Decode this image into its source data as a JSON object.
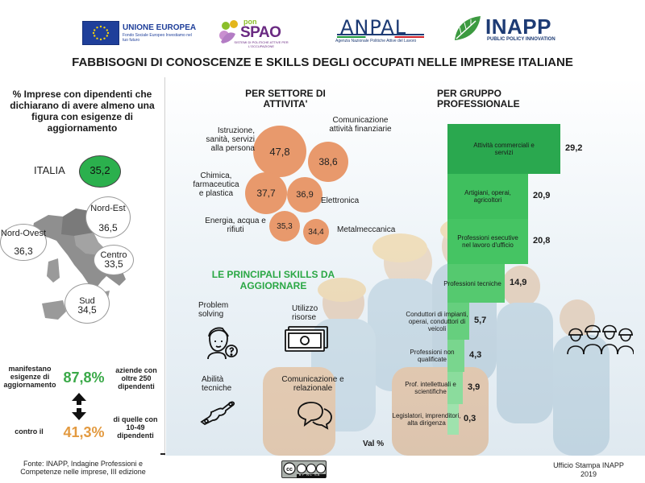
{
  "header": {
    "eu_name": "UNIONE EUROPEA",
    "eu_sub": "Fondo Sociale Europeo Investiamo nel tuo futuro",
    "pon_small": "pon",
    "pon_big": "SPAO",
    "pon_sub": "SISTEMI DI POLITICHE ATTIVE PER L'OCCUPAZIONE",
    "anpal_name": "ANPAL",
    "anpal_sub": "Agenzia Nazionale Politiche Attive del Lavoro",
    "inapp_name": "INAPP",
    "inapp_sub": "PUBLIC POLICY INNOVATION"
  },
  "title": "FABBISOGNI DI CONOSCENZE E SKILLS DEGLI OCCUPATI NELLE IMPRESE ITALIANE",
  "left": {
    "heading": "% Imprese con dipendenti che dichiarano di avere almeno una figura con esigenze di aggiornamento",
    "italia_label": "ITALIA",
    "italia_value": "35,2",
    "regions": [
      {
        "name": "Nord-Est",
        "value": "36,5"
      },
      {
        "name": "Nord-Ovest",
        "value": "36,3"
      },
      {
        "name": "Centro",
        "value": "33,5"
      },
      {
        "name": "Sud",
        "value": "34,5"
      }
    ],
    "stat1_left": "manifestano esigenze di aggiornamento",
    "stat1_value": "87,8%",
    "stat1_right": "aziende con oltre 250 dipendenti",
    "stat2_left": "contro il",
    "stat2_value": "41,3%",
    "stat2_right": "di quelle con 10-49 dipendenti"
  },
  "sector": {
    "title": "PER SETTORE DI ATTIVITA'",
    "bubbles": [
      {
        "label": "Istruzione, sanità, servizi alla persona",
        "value": "47,8"
      },
      {
        "label": "Comunicazione attività finanziarie",
        "value": "38,6"
      },
      {
        "label": "Chimica, farmaceutica e plastica",
        "value": "37,7"
      },
      {
        "label": "Elettronica",
        "value": "36,9"
      },
      {
        "label": "Energia, acqua e rifiuti",
        "value": "35,3"
      },
      {
        "label": "Metalmeccanica",
        "value": "34,4"
      }
    ]
  },
  "skills": {
    "title": "LE PRINCIPALI SKILLS DA AGGIORNARE",
    "items": [
      {
        "label": "Problem solving",
        "icon": "person-question-icon"
      },
      {
        "label": "Utilizzo risorse",
        "icon": "banknote-icon"
      },
      {
        "label": "Abilità tecniche",
        "icon": "wrench-icon"
      },
      {
        "label": "Comunicazione e relazionale",
        "icon": "speech-bubbles-icon"
      }
    ]
  },
  "groups": {
    "title": "PER GRUPPO PROFESSIONALE",
    "axis_label": "Val %",
    "bars": [
      {
        "label": "Attività commerciali e servizi",
        "value": 29.2,
        "display": "29,2"
      },
      {
        "label": "Artigiani, operai, agricoltori",
        "value": 20.9,
        "display": "20,9"
      },
      {
        "label": "Professioni esecutive nel lavoro d'ufficio",
        "value": 20.8,
        "display": "20,8"
      },
      {
        "label": "Professioni tecniche",
        "value": 14.9,
        "display": "14,9"
      },
      {
        "label": "Conduttori di impianti, operai, conduttori di veicoli",
        "value": 5.7,
        "display": "5,7"
      },
      {
        "label": "Professioni non qualificate",
        "value": 4.3,
        "display": "4,3"
      },
      {
        "label": "Prof. intellettuali e scientifiche",
        "value": 3.9,
        "display": "3,9"
      },
      {
        "label": "Legislatori, imprenditori, alta dirigenza",
        "value": 0.3,
        "display": "0,3"
      }
    ],
    "colors": [
      "#2aa84f",
      "#3fbf5e",
      "#45c463",
      "#55c96f",
      "#66cf7e",
      "#79d68e",
      "#8bdc9d",
      "#9fe2ad"
    ]
  },
  "footer": {
    "source": "Fonte: INAPP, Indagine Professioni e Competenze nelle imprese, III edizione",
    "office": "Ufficio Stampa INAPP",
    "year": "2019",
    "license": "BY NC SA"
  }
}
